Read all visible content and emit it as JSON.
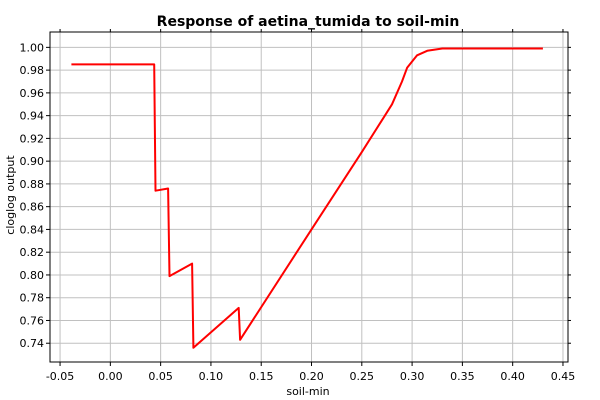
{
  "chart_data": {
    "type": "line",
    "title": "Response of aetina_tumida to soil-min",
    "xlabel": "soil-min",
    "ylabel": "cloglog output",
    "xlim": [
      -0.06,
      0.455
    ],
    "ylim": [
      0.7235,
      1.0135
    ],
    "x_ticks": [
      -0.05,
      0.0,
      0.05,
      0.1,
      0.15,
      0.2,
      0.25,
      0.3,
      0.35,
      0.4,
      0.45
    ],
    "x_tick_labels": [
      "-0.05",
      "0.00",
      "0.05",
      "0.10",
      "0.15",
      "0.20",
      "0.25",
      "0.30",
      "0.35",
      "0.40",
      "0.45"
    ],
    "y_ticks": [
      0.74,
      0.76,
      0.78,
      0.8,
      0.82,
      0.84,
      0.86,
      0.88,
      0.9,
      0.92,
      0.94,
      0.96,
      0.98,
      1.0
    ],
    "y_tick_labels": [
      "0.74",
      "0.76",
      "0.78",
      "0.80",
      "0.82",
      "0.84",
      "0.86",
      "0.88",
      "0.90",
      "0.92",
      "0.94",
      "0.96",
      "0.98",
      "1.00"
    ],
    "grid": true,
    "line_color": "#ff0000",
    "series": [
      {
        "x": [
          -0.0387,
          0.0436,
          0.0449,
          0.0574,
          0.0588,
          0.0813,
          0.0826,
          0.1276,
          0.129,
          0.2,
          0.25,
          0.28,
          0.29,
          0.295,
          0.305,
          0.315,
          0.33,
          0.43
        ],
        "y": [
          0.985,
          0.985,
          0.874,
          0.876,
          0.799,
          0.81,
          0.736,
          0.771,
          0.743,
          0.84,
          0.908,
          0.95,
          0.97,
          0.982,
          0.993,
          0.997,
          0.999,
          0.999
        ]
      }
    ]
  }
}
